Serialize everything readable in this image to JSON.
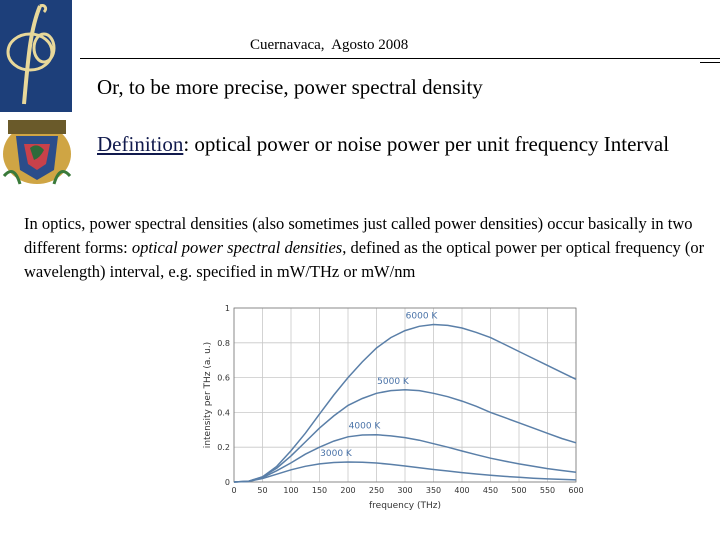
{
  "header": {
    "text": "Cuernavaca,  Agosto 2008"
  },
  "slide": {
    "subtitle": "Or, to be more precise, power spectral density",
    "definition_term": "Definition",
    "definition_rest": ": optical power or noise power per unit frequency Interval",
    "paragraph": {
      "part1": "In optics, power spectral densities (also sometimes just called power densities) occur basically in two different forms: ",
      "emph": "optical power spectral densities",
      "part2": ", defined as the optical power per optical frequency (or wavelength) interval, e.g. specified in mW/THz or mW/nm"
    }
  },
  "colors": {
    "curve": "#5a7fa8",
    "grid": "#c8c8c8",
    "label": "#4a73a8",
    "logo_blue": "#1d3f7a"
  },
  "chart_data": {
    "type": "line",
    "xlabel": "frequency (THz)",
    "ylabel": "intensity per THz (a. u.)",
    "xlim": [
      0,
      600
    ],
    "ylim": [
      0,
      1
    ],
    "x_ticks": [
      "0",
      "50",
      "100",
      "150",
      "200",
      "250",
      "300",
      "350",
      "400",
      "450",
      "500",
      "550",
      "600"
    ],
    "y_ticks": [
      "0",
      "0.2",
      "0.4",
      "0.6",
      "0.8",
      "1"
    ],
    "x": [
      0,
      25,
      50,
      75,
      100,
      125,
      150,
      175,
      200,
      225,
      250,
      275,
      300,
      325,
      350,
      375,
      400,
      425,
      450,
      475,
      500,
      525,
      550,
      575,
      600
    ],
    "series": [
      {
        "name": "6000 K",
        "values": [
          0,
          0.004,
          0.03,
          0.09,
          0.18,
          0.28,
          0.39,
          0.5,
          0.6,
          0.69,
          0.77,
          0.83,
          0.87,
          0.895,
          0.905,
          0.9,
          0.885,
          0.86,
          0.83,
          0.79,
          0.75,
          0.71,
          0.67,
          0.63,
          0.59
        ]
      },
      {
        "name": "5000 K",
        "values": [
          0,
          0.004,
          0.03,
          0.08,
          0.15,
          0.23,
          0.31,
          0.38,
          0.44,
          0.48,
          0.51,
          0.525,
          0.53,
          0.525,
          0.51,
          0.49,
          0.465,
          0.435,
          0.4,
          0.37,
          0.34,
          0.31,
          0.28,
          0.25,
          0.225
        ]
      },
      {
        "name": "4000 K",
        "values": [
          0,
          0.004,
          0.025,
          0.065,
          0.11,
          0.16,
          0.2,
          0.235,
          0.26,
          0.27,
          0.272,
          0.265,
          0.255,
          0.24,
          0.22,
          0.2,
          0.178,
          0.157,
          0.137,
          0.12,
          0.104,
          0.09,
          0.077,
          0.066,
          0.056
        ]
      },
      {
        "name": "3000 K",
        "values": [
          0,
          0.003,
          0.02,
          0.045,
          0.07,
          0.09,
          0.104,
          0.112,
          0.115,
          0.114,
          0.109,
          0.101,
          0.092,
          0.082,
          0.072,
          0.063,
          0.054,
          0.046,
          0.039,
          0.032,
          0.027,
          0.022,
          0.018,
          0.015,
          0.012
        ]
      }
    ]
  }
}
